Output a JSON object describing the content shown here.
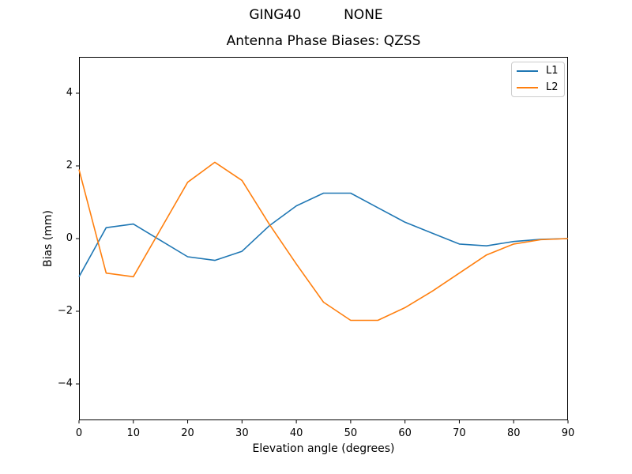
{
  "suptitle": "GING40          NONE",
  "title": "Antenna Phase Biases: QZSS",
  "chart_data": {
    "type": "line",
    "title": "Antenna Phase Biases: QZSS",
    "suptitle": "GING40          NONE",
    "xlabel": "Elevation angle (degrees)",
    "ylabel": "Bias (mm)",
    "xlim": [
      0,
      90
    ],
    "ylim": [
      -5,
      5
    ],
    "xticks": [
      0,
      10,
      20,
      30,
      40,
      50,
      60,
      70,
      80,
      90
    ],
    "yticks": [
      -4,
      -2,
      0,
      2,
      4
    ],
    "ytick_labels": [
      "−4",
      "−2",
      "0",
      "2",
      "4"
    ],
    "grid": false,
    "legend_position": "upper right",
    "x": [
      0,
      5,
      10,
      15,
      20,
      25,
      30,
      35,
      40,
      45,
      50,
      55,
      60,
      65,
      70,
      75,
      80,
      85,
      90
    ],
    "series": [
      {
        "name": "L1",
        "color": "#1f77b4",
        "values": [
          -1.05,
          0.3,
          0.4,
          -0.05,
          -0.5,
          -0.6,
          -0.35,
          0.35,
          0.9,
          1.25,
          1.25,
          0.85,
          0.45,
          0.15,
          -0.15,
          -0.2,
          -0.08,
          -0.02,
          0.0
        ]
      },
      {
        "name": "L2",
        "color": "#ff7f0e",
        "values": [
          1.9,
          -0.95,
          -1.05,
          0.25,
          1.55,
          2.1,
          1.6,
          0.4,
          -0.7,
          -1.75,
          -2.25,
          -2.25,
          -1.9,
          -1.45,
          -0.95,
          -0.45,
          -0.15,
          -0.03,
          0.0
        ]
      }
    ]
  }
}
